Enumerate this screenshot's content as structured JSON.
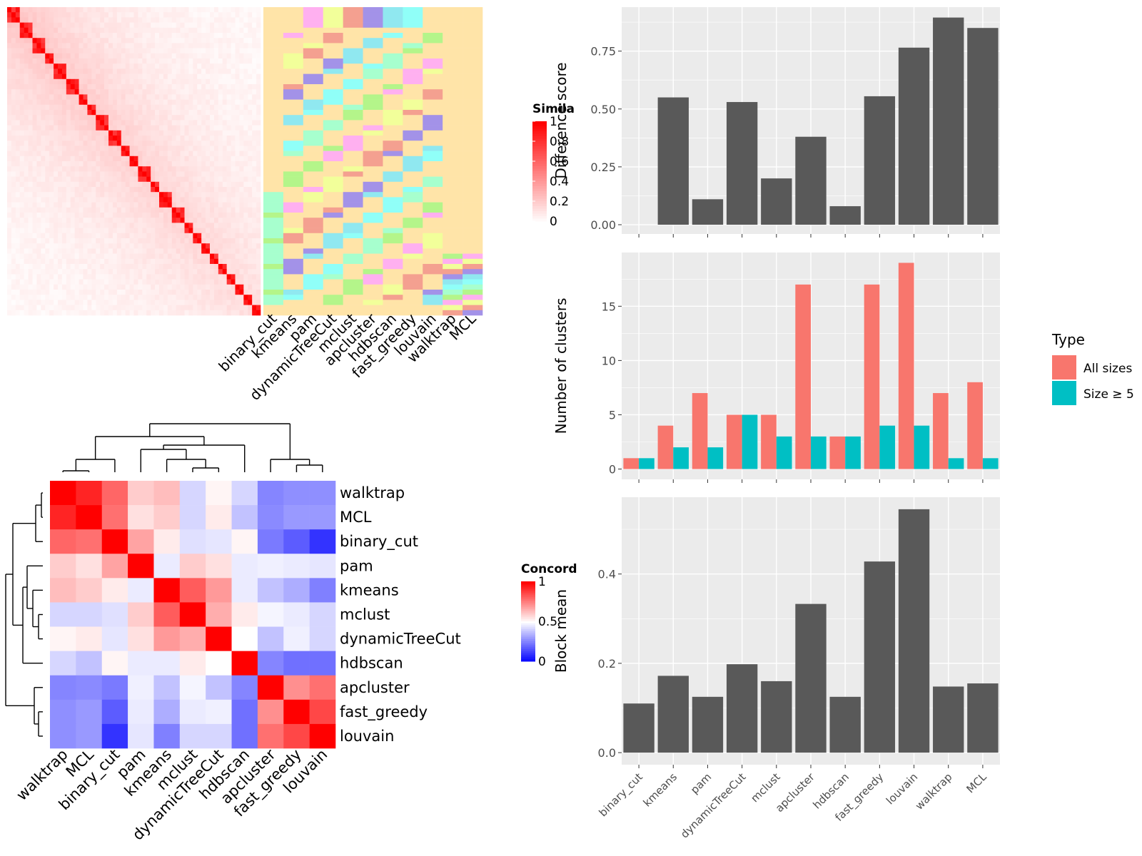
{
  "colors": {
    "panel_bg": "#EBEBEB",
    "grid": "#FFFFFF",
    "bar_dark": "#595959",
    "all_sizes": "#F8766D",
    "size_ge5": "#00BFC4",
    "heat_high": "#FF0000",
    "heat_mid": "#FFFFFF",
    "heat_low": "#0000FF"
  },
  "chart_data": [
    {
      "id": "similarity_heatmap",
      "type": "heatmap",
      "legend_title": "Simila",
      "legend_ticks": [
        "1",
        "0.8",
        "0.6",
        "0.4",
        "0.2",
        "0"
      ],
      "range": [
        0,
        1
      ],
      "annotation_columns": [
        "binary_cut",
        "kmeans",
        "pam",
        "dynamicTreeCut",
        "mclust",
        "apcluster",
        "hdbscan",
        "fast_greedy",
        "louvain",
        "walktrap",
        "MCL"
      ],
      "annotation_palette": [
        "#FFE4A8",
        "#A7FFCE",
        "#B4F58A",
        "#FFB0F0",
        "#F2FF9A",
        "#F4A090",
        "#A392E8",
        "#90E8F0",
        "#90FFF8"
      ]
    },
    {
      "id": "concordance_heatmap",
      "type": "heatmap",
      "legend_title": "Concord",
      "legend_ticks": [
        "1",
        "0.5",
        "0"
      ],
      "range": [
        0,
        1
      ],
      "rows": [
        "walktrap",
        "MCL",
        "binary_cut",
        "pam",
        "kmeans",
        "mclust",
        "dynamicTreeCut",
        "hdbscan",
        "apcluster",
        "fast_greedy",
        "louvain"
      ],
      "columns": [
        "walktrap",
        "MCL",
        "binary_cut",
        "pam",
        "kmeans",
        "mclust",
        "dynamicTreeCut",
        "hdbscan",
        "apcluster",
        "fast_greedy",
        "louvain"
      ],
      "values": [
        [
          1.0,
          0.93,
          0.8,
          0.6,
          0.63,
          0.42,
          0.52,
          0.42,
          0.26,
          0.28,
          0.28
        ],
        [
          0.93,
          1.0,
          0.78,
          0.56,
          0.6,
          0.42,
          0.54,
          0.38,
          0.27,
          0.3,
          0.3
        ],
        [
          0.8,
          0.78,
          1.0,
          0.68,
          0.54,
          0.44,
          0.45,
          0.52,
          0.24,
          0.18,
          0.1
        ],
        [
          0.6,
          0.56,
          0.68,
          1.0,
          0.46,
          0.6,
          0.56,
          0.46,
          0.47,
          0.46,
          0.45
        ],
        [
          0.63,
          0.6,
          0.54,
          0.46,
          1.0,
          0.82,
          0.7,
          0.46,
          0.38,
          0.34,
          0.25
        ],
        [
          0.42,
          0.42,
          0.44,
          0.6,
          0.82,
          1.0,
          0.66,
          0.54,
          0.48,
          0.46,
          0.42
        ],
        [
          0.52,
          0.54,
          0.45,
          0.56,
          0.7,
          0.66,
          1.0,
          0.5,
          0.38,
          0.47,
          0.42
        ],
        [
          0.42,
          0.38,
          0.52,
          0.46,
          0.46,
          0.54,
          0.5,
          1.0,
          0.26,
          0.22,
          0.22
        ],
        [
          0.26,
          0.27,
          0.24,
          0.47,
          0.38,
          0.48,
          0.38,
          0.26,
          1.0,
          0.72,
          0.78
        ],
        [
          0.28,
          0.3,
          0.18,
          0.46,
          0.34,
          0.46,
          0.47,
          0.22,
          0.72,
          1.0,
          0.86
        ],
        [
          0.28,
          0.3,
          0.1,
          0.45,
          0.25,
          0.42,
          0.42,
          0.22,
          0.78,
          0.86,
          1.0
        ]
      ]
    },
    {
      "id": "difference_score",
      "type": "bar",
      "categories": [
        "binary_cut",
        "kmeans",
        "pam",
        "dynamicTreeCut",
        "mclust",
        "apcluster",
        "hdbscan",
        "fast_greedy",
        "louvain",
        "walktrap",
        "MCL"
      ],
      "values": [
        0,
        0.55,
        0.11,
        0.53,
        0.2,
        0.38,
        0.08,
        0.555,
        0.765,
        0.895,
        0.85
      ],
      "ylabel": "Difference score",
      "yticks": [
        "0.00",
        "0.25",
        "0.50",
        "0.75"
      ],
      "ylim": [
        -0.04,
        0.94
      ]
    },
    {
      "id": "number_of_clusters",
      "type": "bar",
      "categories": [
        "binary_cut",
        "kmeans",
        "pam",
        "dynamicTreeCut",
        "mclust",
        "apcluster",
        "hdbscan",
        "fast_greedy",
        "louvain",
        "walktrap",
        "MCL"
      ],
      "series": [
        {
          "name": "All sizes",
          "values": [
            1,
            4,
            7,
            5,
            5,
            17,
            3,
            17,
            19,
            7,
            8
          ]
        },
        {
          "name": "Size ≥ 5",
          "values": [
            1,
            2,
            2,
            5,
            3,
            3,
            3,
            4,
            4,
            1,
            1
          ]
        }
      ],
      "ylabel": "Number of clusters",
      "yticks": [
        "0",
        "5",
        "10",
        "15"
      ],
      "ylim": [
        -0.95,
        19.95
      ],
      "legend_title": "Type",
      "legend_position": "right"
    },
    {
      "id": "block_mean",
      "type": "bar",
      "categories": [
        "binary_cut",
        "kmeans",
        "pam",
        "dynamicTreeCut",
        "mclust",
        "apcluster",
        "hdbscan",
        "fast_greedy",
        "louvain",
        "walktrap",
        "MCL"
      ],
      "values": [
        0.11,
        0.172,
        0.125,
        0.198,
        0.16,
        0.333,
        0.125,
        0.428,
        0.545,
        0.148,
        0.155
      ],
      "ylabel": "Block mean",
      "yticks": [
        "0.0",
        "0.2",
        "0.4"
      ],
      "ylim": [
        -0.027,
        0.572
      ]
    }
  ]
}
